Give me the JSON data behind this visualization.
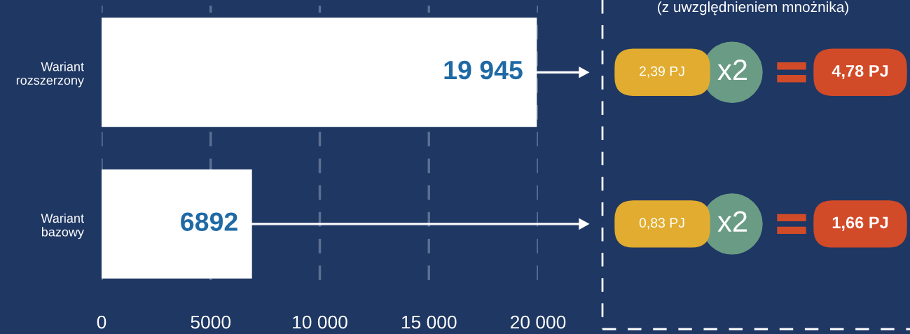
{
  "chart_data": [
    {
      "type": "bar",
      "orientation": "horizontal",
      "categories": [
        "Wariant\nrozszerzony",
        "Wariant\nbazowy"
      ],
      "values": [
        19945,
        6892
      ],
      "color": "#ffffff",
      "value_labels": [
        "19 945",
        "6892"
      ],
      "xlim": [
        0,
        20000
      ],
      "xticks": [
        0,
        5000,
        {
          "value": 10000,
          "label": "10 000"
        },
        {
          "value": 15000,
          "label": "15 000"
        },
        {
          "value": 20000,
          "label": "20 000"
        }
      ],
      "grid": "x",
      "line_style": "dashed"
    },
    {
      "type": "other",
      "annotations": [
        "(z uwzględnieniem mnożnika)",
        "2,39 PJ",
        "x2",
        "4,78 PJ",
        "0,83 PJ",
        "x2",
        "1,66 PJ"
      ]
    }
  ]
}
